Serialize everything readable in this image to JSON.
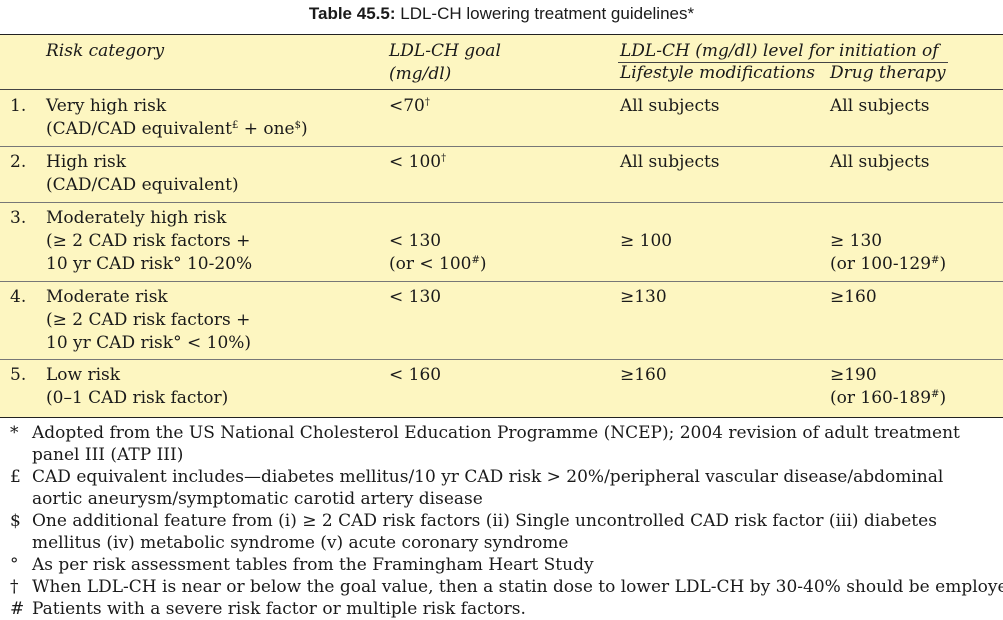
{
  "caption": {
    "number": "Table 45.5:",
    "title": "LDL-CH lowering treatment guidelines*"
  },
  "header": {
    "risk_category": "Risk category",
    "goal_line1": "LDL-CH  goal",
    "goal_line2": "(mg/dl)",
    "initiation": "LDL-CH (mg/dl) level for initiation of",
    "lifestyle": "Lifestyle  modifications",
    "drug": "Drug  therapy"
  },
  "rows": [
    {
      "num": "1.",
      "cat_line1": "Very high risk",
      "cat_line2": "(CAD/CAD equivalent",
      "cat_line2_sup": "£",
      "cat_line2_mid": " + one",
      "cat_line2_sup2": "$",
      "cat_line2_end": ")",
      "goal": "<70",
      "goal_sup": "†",
      "lifestyle": "All  subjects",
      "drug": "All  subjects"
    },
    {
      "num": "2.",
      "cat_line1": "High risk",
      "cat_line2": "(CAD/CAD   equivalent)",
      "goal": "< 100",
      "goal_sup": "†",
      "lifestyle": "All  subjects",
      "drug": "All  subjects"
    },
    {
      "num": "3.",
      "cat_line1": "Moderately high risk",
      "cat_line2": "(≥ 2 CAD risk factors +",
      "cat_line3": "10 yr CAD risk° 10-20%",
      "goal": "< 130",
      "goal2": "(or < 100",
      "goal2_sup": "#",
      "goal2_end": ")",
      "lifestyle": "≥ 100",
      "drug": "≥ 130",
      "drug2": "(or   100-129",
      "drug2_sup": "#",
      "drug2_end": ")"
    },
    {
      "num": "4.",
      "cat_line1": "Moderate risk",
      "cat_line2": "(≥ 2 CAD risk factors +",
      "cat_line3": "10 yr CAD risk° < 10%)",
      "goal": "< 130",
      "lifestyle": "≥130",
      "drug": "≥160"
    },
    {
      "num": "5.",
      "cat_line1": "Low risk",
      "cat_line2": "(0–1 CAD risk factor)",
      "goal": "< 160",
      "lifestyle": "≥160",
      "drug": "≥190",
      "drug2": "(or   160-189",
      "drug2_sup": "#",
      "drug2_end": ")"
    }
  ],
  "notes": [
    {
      "sym": "*",
      "text": "Adopted from the US National Cholesterol Education Programme (NCEP); 2004 revision of adult treatment panel III (ATP III)"
    },
    {
      "sym": "£",
      "text": "CAD equivalent includes—diabetes mellitus/10 yr CAD risk > 20%/peripheral vascular disease/abdominal aortic aneurysm/symptomatic carotid artery disease"
    },
    {
      "sym": "$",
      "text": "One additional feature from (i) ≥ 2 CAD risk factors (ii) Single uncontrolled CAD risk factor (iii) diabetes mellitus (iv) metabolic syndrome (v) acute coronary syndrome"
    },
    {
      "sym": "°",
      "text": "As per risk assessment tables from the Framingham Heart Study"
    },
    {
      "sym": "†",
      "text": "When LDL-CH is near or below the goal value, then a statin dose to lower LDL-CH by 30-40% should be employed"
    },
    {
      "sym": "#",
      "text": "Patients with a severe risk factor or multiple risk factors."
    }
  ],
  "colors": {
    "table_bg": "#fdf6c1",
    "text": "#1a1a1a"
  }
}
